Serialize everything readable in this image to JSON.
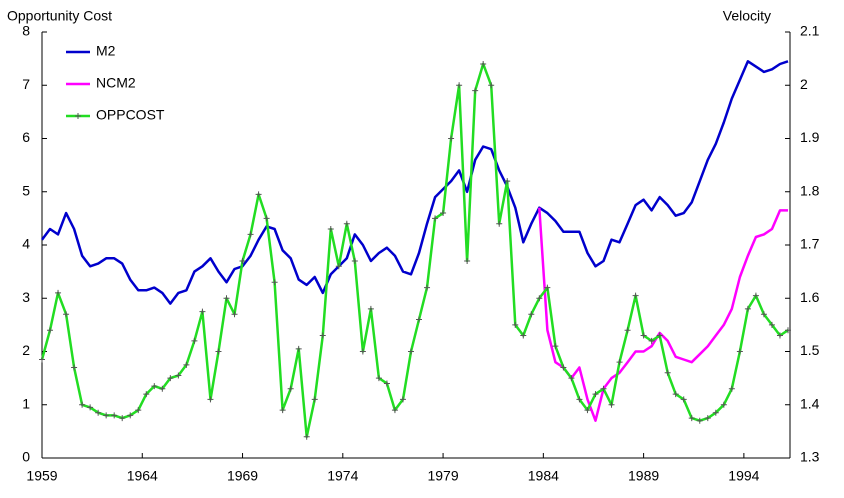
{
  "chart_data": {
    "type": "line",
    "y_label": "Opportunity Cost",
    "y2_label": "Velocity",
    "x": [
      1959,
      1959.4,
      1959.8,
      1960.2,
      1960.6,
      1961,
      1961.4,
      1961.8,
      1962.2,
      1962.6,
      1963,
      1963.4,
      1963.8,
      1964.2,
      1964.6,
      1965,
      1965.4,
      1965.8,
      1966.2,
      1966.6,
      1967,
      1967.4,
      1967.8,
      1968.2,
      1968.6,
      1969,
      1969.4,
      1969.8,
      1970.2,
      1970.6,
      1971,
      1971.4,
      1971.8,
      1972.2,
      1972.6,
      1973,
      1973.4,
      1973.8,
      1974.2,
      1974.6,
      1975,
      1975.4,
      1975.8,
      1976.2,
      1976.6,
      1977,
      1977.4,
      1977.8,
      1978.2,
      1978.6,
      1979,
      1979.4,
      1979.8,
      1980.2,
      1980.6,
      1981,
      1981.4,
      1981.8,
      1982.2,
      1982.6,
      1983,
      1983.4,
      1983.8,
      1984.2,
      1984.6,
      1985,
      1985.4,
      1985.8,
      1986.2,
      1986.6,
      1987,
      1987.4,
      1987.8,
      1988.2,
      1988.6,
      1989,
      1989.4,
      1989.8,
      1990.2,
      1990.6,
      1991,
      1991.4,
      1991.8,
      1992.2,
      1992.6,
      1993,
      1993.4,
      1993.8,
      1994.2,
      1994.6,
      1995,
      1995.4,
      1995.8,
      1996.2
    ],
    "series": [
      {
        "name": "M2",
        "color": "#0000cc",
        "axis": "y2",
        "values": [
          1.71,
          1.73,
          1.72,
          1.76,
          1.73,
          1.68,
          1.66,
          1.665,
          1.675,
          1.675,
          1.665,
          1.635,
          1.615,
          1.615,
          1.62,
          1.61,
          1.59,
          1.61,
          1.615,
          1.65,
          1.66,
          1.675,
          1.65,
          1.63,
          1.655,
          1.66,
          1.68,
          1.71,
          1.735,
          1.73,
          1.69,
          1.675,
          1.635,
          1.625,
          1.64,
          1.61,
          1.645,
          1.66,
          1.675,
          1.72,
          1.7,
          1.67,
          1.685,
          1.695,
          1.68,
          1.65,
          1.645,
          1.685,
          1.74,
          1.79,
          1.805,
          1.82,
          1.84,
          1.8,
          1.86,
          1.885,
          1.88,
          1.84,
          1.81,
          1.77,
          1.705,
          1.74,
          1.77,
          1.76,
          1.745,
          1.725,
          1.725,
          1.725,
          1.685,
          1.66,
          1.67,
          1.71,
          1.705,
          1.74,
          1.775,
          1.785,
          1.765,
          1.79,
          1.775,
          1.755,
          1.76,
          1.78,
          1.82,
          1.86,
          1.89,
          1.93,
          1.975,
          2.01,
          2.045,
          2.035,
          2.025,
          2.03,
          2.04,
          2.045
        ]
      },
      {
        "name": "NCM2",
        "color": "#ff00ff",
        "axis": "y2",
        "values": [
          null,
          null,
          null,
          null,
          null,
          null,
          null,
          null,
          null,
          null,
          null,
          null,
          null,
          null,
          null,
          null,
          null,
          null,
          null,
          null,
          null,
          null,
          null,
          null,
          null,
          null,
          null,
          null,
          null,
          null,
          null,
          null,
          null,
          null,
          null,
          null,
          null,
          null,
          null,
          null,
          null,
          null,
          null,
          null,
          null,
          null,
          null,
          null,
          null,
          null,
          null,
          null,
          null,
          null,
          null,
          null,
          null,
          null,
          null,
          null,
          null,
          null,
          1.77,
          1.54,
          1.48,
          1.47,
          1.45,
          1.47,
          1.41,
          1.37,
          1.43,
          1.45,
          1.46,
          1.48,
          1.5,
          1.5,
          1.51,
          1.535,
          1.52,
          1.49,
          1.485,
          1.48,
          1.495,
          1.51,
          1.53,
          1.55,
          1.58,
          1.64,
          1.68,
          1.715,
          1.72,
          1.73,
          1.765,
          1.765
        ]
      },
      {
        "name": "OPPCOST",
        "color": "#22dd22",
        "marker_color": "#555555",
        "values": [
          1.85,
          2.4,
          3.1,
          2.7,
          1.7,
          1.0,
          0.95,
          0.85,
          0.8,
          0.8,
          0.75,
          0.8,
          0.9,
          1.2,
          1.35,
          1.3,
          1.5,
          1.55,
          1.75,
          2.2,
          2.75,
          1.1,
          2.0,
          3.0,
          2.7,
          3.7,
          4.2,
          4.95,
          4.5,
          3.3,
          0.9,
          1.3,
          2.05,
          0.4,
          1.1,
          2.3,
          4.3,
          3.6,
          4.4,
          3.7,
          2.0,
          2.8,
          1.5,
          1.4,
          0.9,
          1.1,
          2.0,
          2.6,
          3.2,
          4.5,
          4.6,
          6.0,
          7.0,
          3.7,
          6.9,
          7.4,
          7.0,
          4.4,
          5.2,
          2.5,
          2.3,
          2.7,
          3.0,
          3.2,
          2.1,
          1.7,
          1.5,
          1.1,
          0.9,
          1.2,
          1.3,
          1.0,
          1.8,
          2.4,
          3.05,
          2.3,
          2.2,
          2.3,
          1.6,
          1.2,
          1.1,
          0.75,
          0.7,
          0.75,
          0.85,
          1.0,
          1.3,
          2.0,
          2.8,
          3.05,
          2.7,
          2.5,
          2.3,
          2.4
        ]
      }
    ],
    "xlim": [
      1959,
      1996.3
    ],
    "xticks": [
      1959,
      1964,
      1969,
      1974,
      1979,
      1984,
      1989,
      1994
    ],
    "ylim": [
      0,
      8
    ],
    "yticks": [
      0,
      1,
      2,
      3,
      4,
      5,
      6,
      7,
      8
    ],
    "y2lim": [
      1.3,
      2.1
    ],
    "y2ticks": [
      1.3,
      1.4,
      1.5,
      1.6,
      1.7,
      1.8,
      1.9,
      2,
      2.1
    ],
    "legend": "upper left",
    "grid": false
  }
}
